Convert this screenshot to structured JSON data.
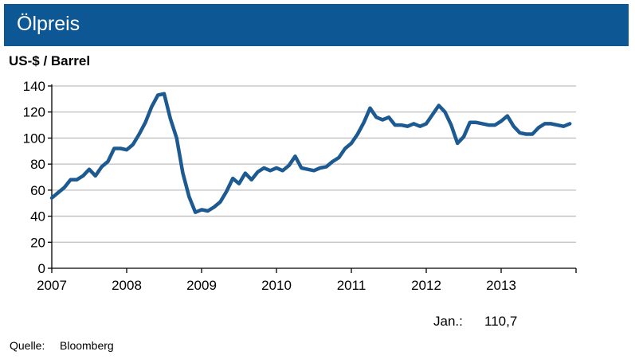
{
  "header": {
    "title": "Ölpreis"
  },
  "footer": {
    "latest_label": "Jan.:",
    "latest_value": "110,7",
    "source_label": "Quelle:",
    "source_value": "Bloomberg"
  },
  "colors": {
    "title_bar": "#0c5794",
    "series_line": "#1d5a91",
    "grid": "#bfbfbf"
  },
  "chart_data": {
    "type": "line",
    "title": "",
    "ylabel": "US-$ / Barrel",
    "xlabel": "",
    "ylim": [
      0,
      140
    ],
    "xlim": [
      2007,
      2014
    ],
    "y_ticks": [
      0,
      20,
      40,
      60,
      80,
      100,
      120,
      140
    ],
    "x_ticks": [
      "2007",
      "2008",
      "2009",
      "2010",
      "2011",
      "2012",
      "2013"
    ],
    "grid": "horizontal",
    "legend": "none",
    "series": [
      {
        "x": [
          2007.0,
          2007.083,
          2007.167,
          2007.25,
          2007.333,
          2007.417,
          2007.5,
          2007.583,
          2007.667,
          2007.75,
          2007.833,
          2007.917,
          2008.0,
          2008.083,
          2008.167,
          2008.25,
          2008.333,
          2008.417,
          2008.5,
          2008.583,
          2008.667,
          2008.75,
          2008.833,
          2008.917,
          2009.0,
          2009.083,
          2009.167,
          2009.25,
          2009.333,
          2009.417,
          2009.5,
          2009.583,
          2009.667,
          2009.75,
          2009.833,
          2009.917,
          2010.0,
          2010.083,
          2010.167,
          2010.25,
          2010.333,
          2010.417,
          2010.5,
          2010.583,
          2010.667,
          2010.75,
          2010.833,
          2010.917,
          2011.0,
          2011.083,
          2011.167,
          2011.25,
          2011.333,
          2011.417,
          2011.5,
          2011.583,
          2011.667,
          2011.75,
          2011.833,
          2011.917,
          2012.0,
          2012.083,
          2012.167,
          2012.25,
          2012.333,
          2012.417,
          2012.5,
          2012.583,
          2012.667,
          2012.75,
          2012.833,
          2012.917,
          2013.0,
          2013.083,
          2013.167,
          2013.25,
          2013.333,
          2013.417,
          2013.5,
          2013.583,
          2013.667,
          2013.75,
          2013.833,
          2013.917
        ],
        "values": [
          54,
          58,
          62,
          68,
          68,
          71,
          76,
          71,
          78,
          82,
          92,
          92,
          91,
          95,
          103,
          112,
          124,
          133,
          134,
          115,
          100,
          73,
          55,
          43,
          45,
          44,
          47,
          51,
          59,
          69,
          65,
          73,
          68,
          74,
          77,
          75,
          77,
          75,
          79,
          86,
          77,
          76,
          75,
          77,
          78,
          82,
          85,
          92,
          96,
          103,
          112,
          123,
          116,
          114,
          116,
          110,
          110,
          109,
          111,
          109,
          111,
          118,
          125,
          120,
          110,
          96,
          101,
          112,
          112,
          111,
          110,
          110,
          113,
          117,
          109,
          104,
          103,
          103,
          108,
          111,
          111,
          110,
          109,
          111
        ]
      }
    ]
  }
}
